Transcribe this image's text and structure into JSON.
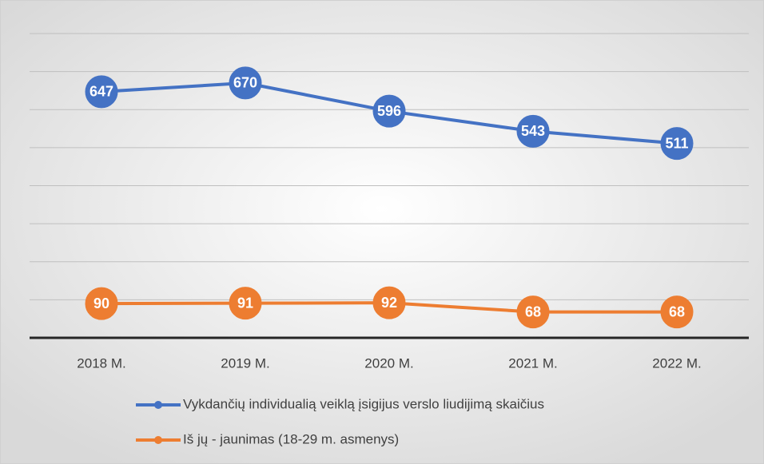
{
  "chart_data": {
    "type": "line",
    "categories": [
      "2018 M.",
      "2019 M.",
      "2020 M.",
      "2021 M.",
      "2022 M."
    ],
    "series": [
      {
        "name": "Vykdančių individualią veiklą įsigijus verslo liudijimą skaičius",
        "color": "#4472c4",
        "values": [
          647,
          670,
          596,
          543,
          511
        ]
      },
      {
        "name": "Iš jų - jaunimas (18-29 m. asmenys)",
        "color": "#ed7d31",
        "values": [
          90,
          91,
          92,
          68,
          68
        ]
      }
    ],
    "ylim": [
      0,
      800
    ],
    "yticks": [
      0,
      100,
      200,
      300,
      400,
      500,
      600,
      700,
      800
    ],
    "grid": true
  }
}
